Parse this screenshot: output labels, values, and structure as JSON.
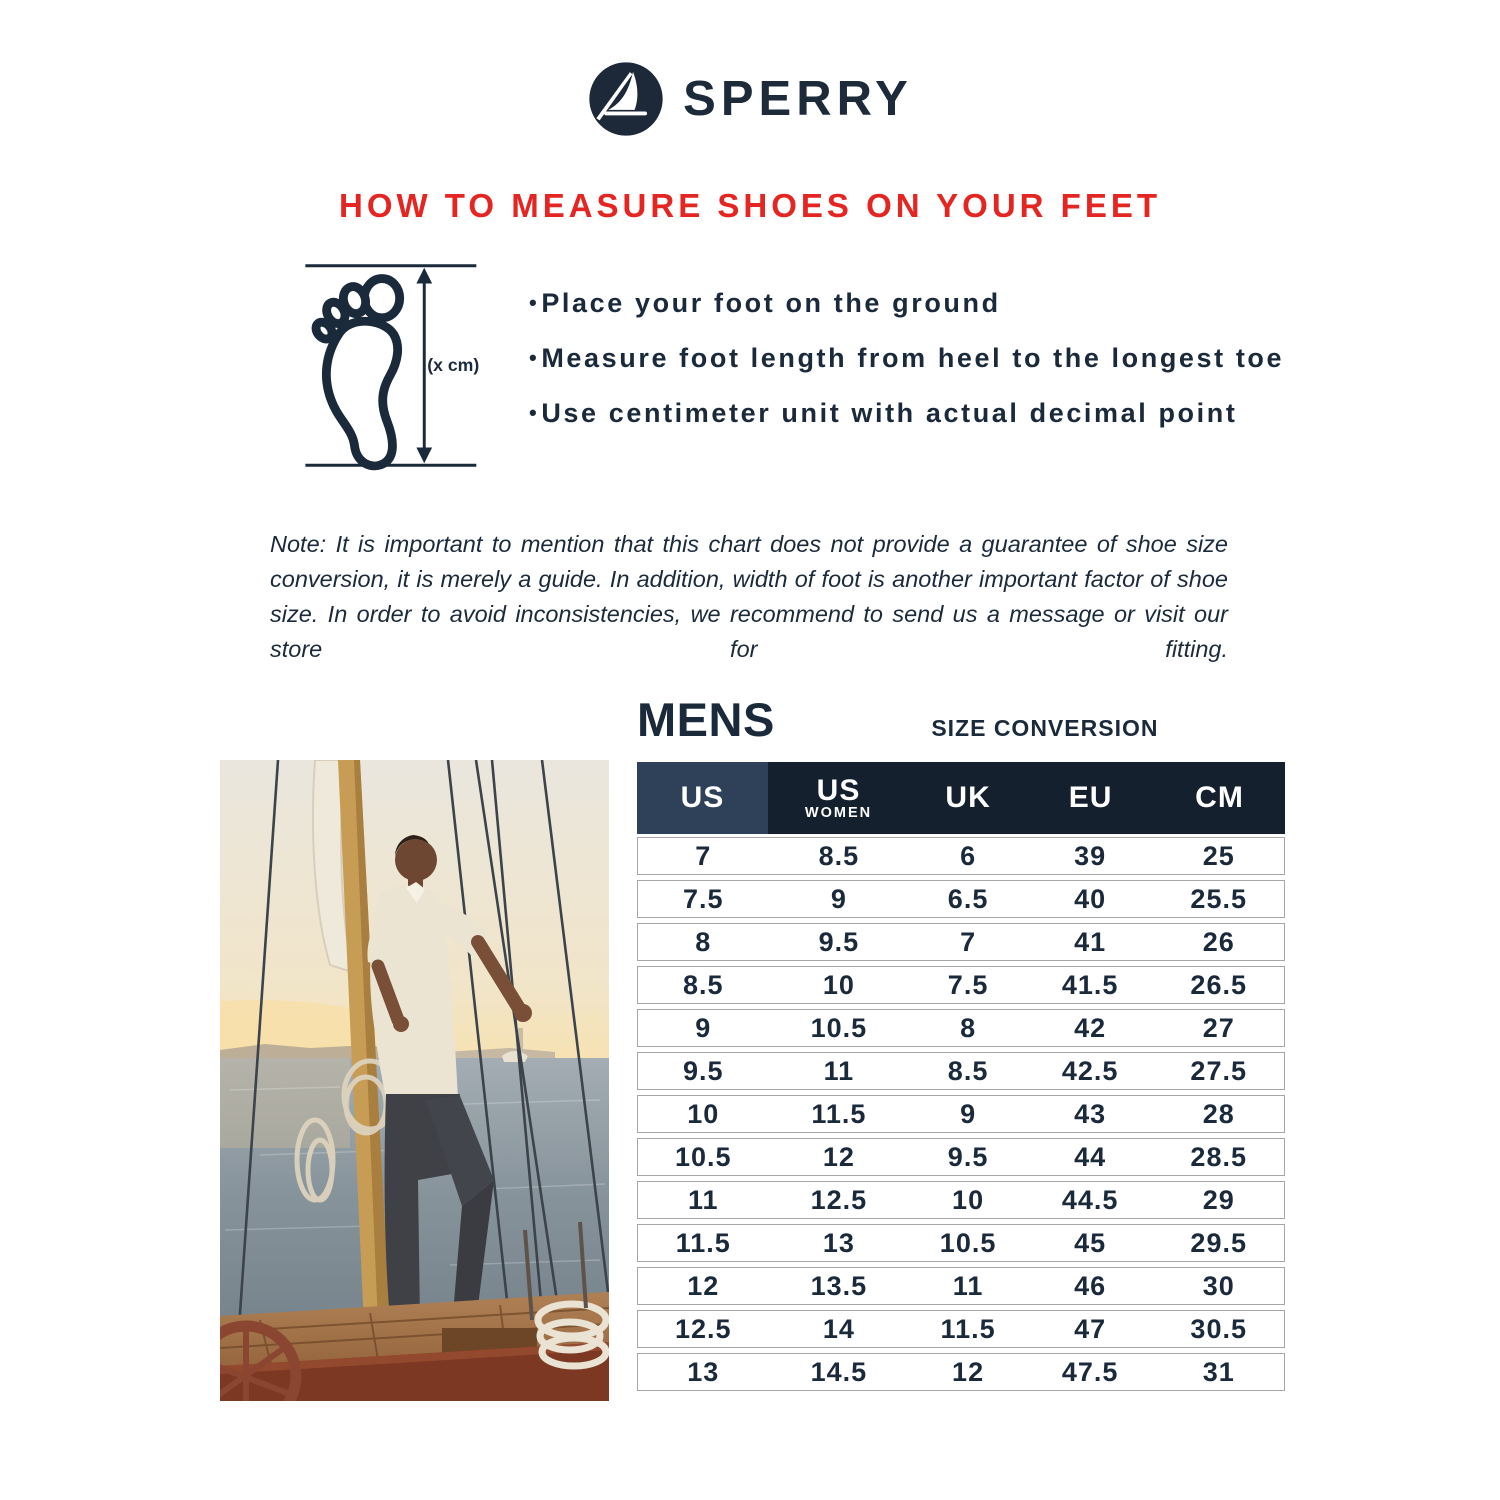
{
  "brand": {
    "name": "SPERRY"
  },
  "heading": "HOW TO MEASURE SHOES ON YOUR FEET",
  "diagram": {
    "label": "(x cm)"
  },
  "instructions": [
    "Place your foot on the ground",
    "Measure foot length from heel to the longest toe",
    "Use centimeter unit with actual decimal point"
  ],
  "note": "Note: It is important to mention that this chart does not provide a guarantee of shoe size conversion, it is merely a guide. In addition, width of foot is another important factor of shoe size. In order to avoid inconsistencies, we recommend to send us a message or visit our store for fitting.",
  "table": {
    "section_title": "MENS",
    "subtitle": "SIZE CONVERSION",
    "columns": [
      {
        "top": "US"
      },
      {
        "top": "US",
        "sub": "WOMEN"
      },
      {
        "top": "UK"
      },
      {
        "top": "EU"
      },
      {
        "top": "CM"
      }
    ],
    "rows": [
      [
        "7",
        "8.5",
        "6",
        "39",
        "25"
      ],
      [
        "7.5",
        "9",
        "6.5",
        "40",
        "25.5"
      ],
      [
        "8",
        "9.5",
        "7",
        "41",
        "26"
      ],
      [
        "8.5",
        "10",
        "7.5",
        "41.5",
        "26.5"
      ],
      [
        "9",
        "10.5",
        "8",
        "42",
        "27"
      ],
      [
        "9.5",
        "11",
        "8.5",
        "42.5",
        "27.5"
      ],
      [
        "10",
        "11.5",
        "9",
        "43",
        "28"
      ],
      [
        "10.5",
        "12",
        "9.5",
        "44",
        "28.5"
      ],
      [
        "11",
        "12.5",
        "10",
        "44.5",
        "29"
      ],
      [
        "11.5",
        "13",
        "10.5",
        "45",
        "29.5"
      ],
      [
        "12",
        "13.5",
        "11",
        "46",
        "30"
      ],
      [
        "12.5",
        "14",
        "11.5",
        "47",
        "30.5"
      ],
      [
        "13",
        "14.5",
        "12",
        "47.5",
        "31"
      ]
    ]
  },
  "colors": {
    "navy_text": "#1b2a3b",
    "heading_red": "#e42522",
    "table_header_dark": "#15202e",
    "table_header_light": "#2e4158",
    "row_border": "#a6a6a6"
  }
}
